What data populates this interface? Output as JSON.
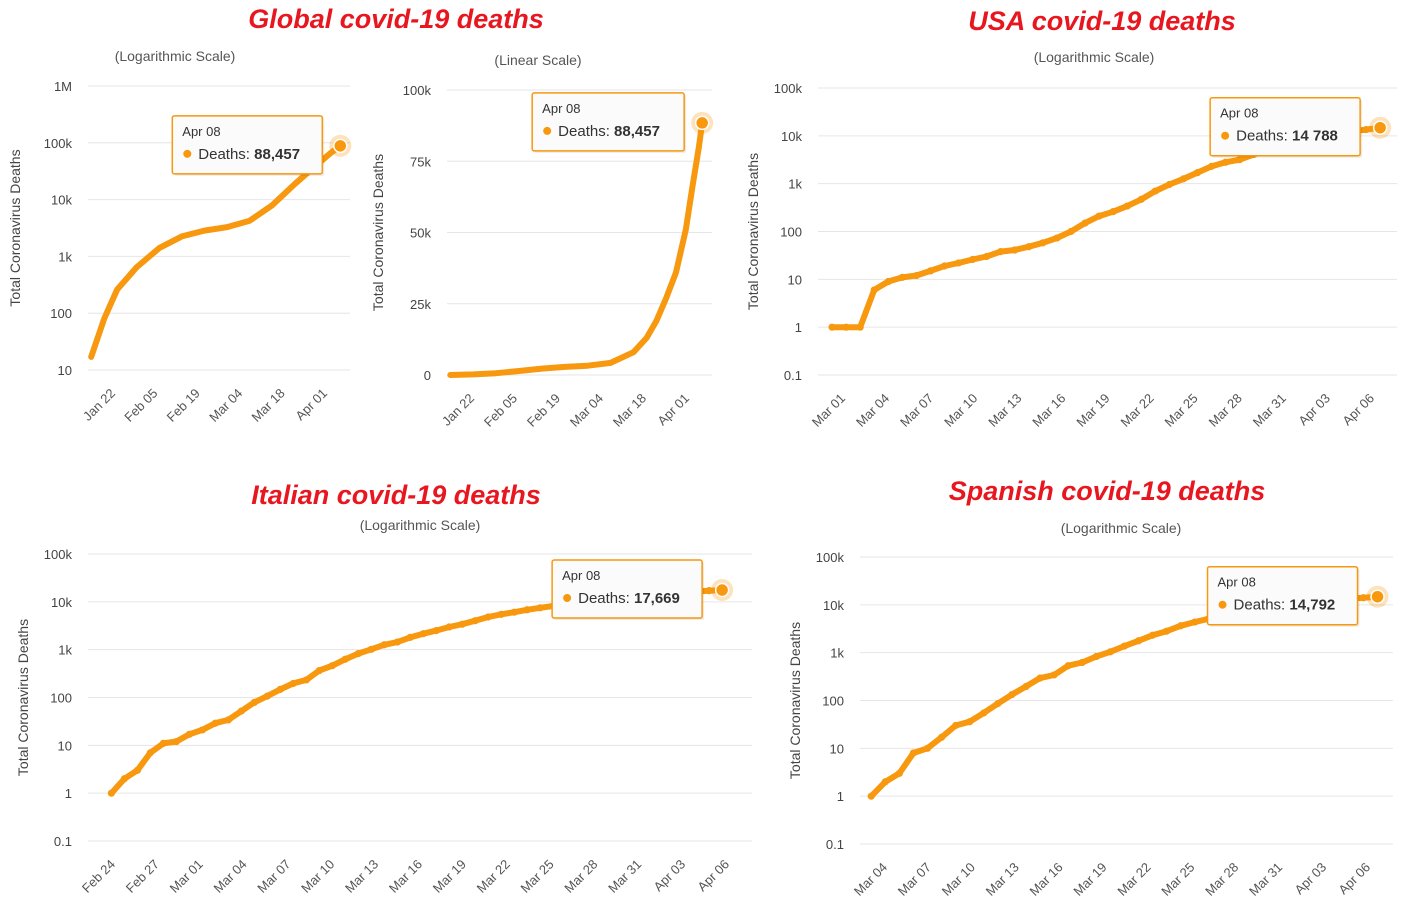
{
  "headings": {
    "global": "Global covid-19 deaths",
    "usa": "USA covid-19 deaths",
    "italy": "Italian covid-19 deaths",
    "spain": "Spanish covid-19 deaths"
  },
  "colors": {
    "heading": "#e8161f",
    "series": "#f7980e",
    "grid": "#e6e6e6"
  },
  "chart_data": [
    {
      "id": "global-log",
      "type": "line",
      "subtitle": "(Logarithmic Scale)",
      "ylabel": "Total Coronavirus Deaths",
      "yscale": "log",
      "ylim": [
        10,
        1000000
      ],
      "yticks": [
        10,
        100,
        1000,
        10000,
        100000,
        1000000
      ],
      "ytick_labels": [
        "10",
        "100",
        "1k",
        "10k",
        "100k",
        "1M"
      ],
      "xticks": [
        "Jan 22",
        "Feb 05",
        "Feb 19",
        "Mar 04",
        "Mar 18",
        "Apr 01"
      ],
      "x": [
        0,
        4,
        8,
        14,
        21,
        28,
        35,
        42,
        49,
        56,
        63,
        67,
        70,
        74,
        77
      ],
      "y": [
        17,
        80,
        260,
        640,
        1400,
        2250,
        2850,
        3280,
        4250,
        8000,
        19000,
        30000,
        42000,
        66000,
        88457
      ],
      "xlim": [
        -1,
        80
      ],
      "tooltip": {
        "date": "Apr 08",
        "label": "Deaths: ",
        "value": "88,457"
      }
    },
    {
      "id": "global-linear",
      "type": "line",
      "subtitle": "(Linear Scale)",
      "ylabel": "Total Coronavirus Deaths",
      "yscale": "linear",
      "ylim": [
        0,
        100000
      ],
      "yticks": [
        0,
        25000,
        50000,
        75000,
        100000
      ],
      "ytick_labels": [
        "0",
        "25k",
        "50k",
        "75k",
        "100k"
      ],
      "xticks": [
        "Jan 22",
        "Feb 05",
        "Feb 19",
        "Mar 04",
        "Mar 18",
        "Apr 01"
      ],
      "x": [
        0,
        7,
        14,
        21,
        28,
        35,
        42,
        49,
        56,
        60,
        63,
        66,
        69,
        72,
        74,
        76,
        77
      ],
      "y": [
        17,
        200,
        640,
        1400,
        2250,
        2850,
        3280,
        4250,
        8000,
        13000,
        19000,
        27000,
        36000,
        51000,
        66000,
        80000,
        88457
      ],
      "xlim": [
        -1,
        80
      ],
      "tooltip": {
        "date": "Apr 08",
        "label": "Deaths: ",
        "value": "88,457"
      }
    },
    {
      "id": "usa-log",
      "type": "line",
      "subtitle": "(Logarithmic Scale)",
      "ylabel": "Total Coronavirus Deaths",
      "yscale": "log",
      "ylim": [
        0.1,
        100000
      ],
      "yticks": [
        0.1,
        1,
        10,
        100,
        1000,
        10000,
        100000
      ],
      "ytick_labels": [
        "0.1",
        "1",
        "10",
        "100",
        "1k",
        "10k",
        "100k"
      ],
      "xticks": [
        "Mar 01",
        "Mar 04",
        "Mar 07",
        "Mar 10",
        "Mar 13",
        "Mar 16",
        "Mar 19",
        "Mar 22",
        "Mar 25",
        "Mar 28",
        "Mar 31",
        "Apr 03",
        "Apr 06"
      ],
      "x": [
        29,
        30,
        31,
        32,
        33,
        34,
        35,
        36,
        37,
        38,
        39,
        40,
        41,
        42,
        43,
        44,
        45,
        46,
        47,
        48,
        49,
        50,
        51,
        52,
        53,
        54,
        55,
        56,
        57,
        58,
        59,
        60,
        61,
        62,
        63,
        64,
        65,
        66,
        67,
        68
      ],
      "y": [
        1,
        1,
        1,
        6,
        9,
        11,
        12,
        15,
        19,
        22,
        26,
        30,
        38,
        41,
        48,
        58,
        73,
        100,
        150,
        210,
        260,
        340,
        470,
        700,
        960,
        1260,
        1700,
        2300,
        2800,
        3170,
        4080,
        5100,
        6100,
        7400,
        8500,
        9600,
        10800,
        12400,
        13500,
        14788
      ],
      "xlim": [
        28,
        69.2
      ],
      "tooltip": {
        "date": "Apr 08",
        "label": "Deaths: ",
        "value": "14 788"
      }
    },
    {
      "id": "italy-log",
      "type": "line",
      "subtitle": "(Logarithmic Scale)",
      "ylabel": "Total Coronavirus Deaths",
      "yscale": "log",
      "ylim": [
        0.1,
        100000
      ],
      "yticks": [
        0.1,
        1,
        10,
        100,
        1000,
        10000,
        100000
      ],
      "ytick_labels": [
        "0.1",
        "1",
        "10",
        "100",
        "1k",
        "10k",
        "100k"
      ],
      "xticks": [
        "Feb 24",
        "Feb 27",
        "Mar 01",
        "Mar 04",
        "Mar 07",
        "Mar 10",
        "Mar 13",
        "Mar 16",
        "Mar 19",
        "Mar 22",
        "Mar 25",
        "Mar 28",
        "Mar 31",
        "Apr 03",
        "Apr 06"
      ],
      "x": [
        21,
        22,
        23,
        24,
        25,
        26,
        27,
        28,
        29,
        30,
        31,
        32,
        33,
        34,
        35,
        36,
        37,
        38,
        39,
        40,
        41,
        42,
        43,
        44,
        45,
        46,
        47,
        48,
        49,
        50,
        51,
        52,
        53,
        54,
        55,
        56,
        57,
        58,
        59,
        60,
        61,
        62,
        63,
        64,
        65,
        66,
        67,
        68
      ],
      "y": [
        1,
        2,
        3,
        7,
        11,
        12,
        17,
        21,
        29,
        34,
        52,
        79,
        107,
        148,
        197,
        233,
        366,
        463,
        631,
        827,
        1016,
        1266,
        1441,
        1809,
        2158,
        2503,
        2978,
        3405,
        4032,
        4825,
        5476,
        6077,
        6820,
        7503,
        8165,
        9134,
        10023,
        10779,
        11591,
        12428,
        13155,
        13915,
        14681,
        15362,
        15887,
        16523,
        17127,
        17669
      ],
      "xlim": [
        19.2,
        70.3
      ],
      "tooltip": {
        "date": "Apr 08",
        "label": "Deaths: ",
        "value": "17,669"
      }
    },
    {
      "id": "spain-log",
      "type": "line",
      "subtitle": "(Logarithmic Scale)",
      "ylabel": "Total Coronavirus Deaths",
      "yscale": "log",
      "ylim": [
        0.1,
        100000
      ],
      "yticks": [
        0.1,
        1,
        10,
        100,
        1000,
        10000,
        100000
      ],
      "ytick_labels": [
        "0.1",
        "1",
        "10",
        "100",
        "1k",
        "10k",
        "100k"
      ],
      "xticks": [
        "Mar 04",
        "Mar 07",
        "Mar 10",
        "Mar 13",
        "Mar 16",
        "Mar 19",
        "Mar 22",
        "Mar 25",
        "Mar 28",
        "Mar 31",
        "Apr 03",
        "Apr 06"
      ],
      "x": [
        32,
        33,
        34,
        35,
        36,
        37,
        38,
        39,
        40,
        41,
        42,
        43,
        44,
        45,
        46,
        47,
        48,
        49,
        50,
        51,
        52,
        53,
        54,
        55,
        56,
        57,
        58,
        59,
        60,
        61,
        62,
        63,
        64,
        65,
        66,
        67,
        68
      ],
      "y": [
        1,
        2,
        3,
        8,
        10,
        17,
        30,
        36,
        55,
        86,
        133,
        196,
        294,
        342,
        533,
        623,
        830,
        1043,
        1375,
        1772,
        2311,
        2808,
        3647,
        4365,
        5138,
        5982,
        6803,
        7716,
        8464,
        9387,
        10348,
        11198,
        11947,
        12641,
        13341,
        14045,
        14792
      ],
      "xlim": [
        31.2,
        69.1
      ],
      "tooltip": {
        "date": "Apr 08",
        "label": "Deaths: ",
        "value": "14,792"
      }
    }
  ]
}
